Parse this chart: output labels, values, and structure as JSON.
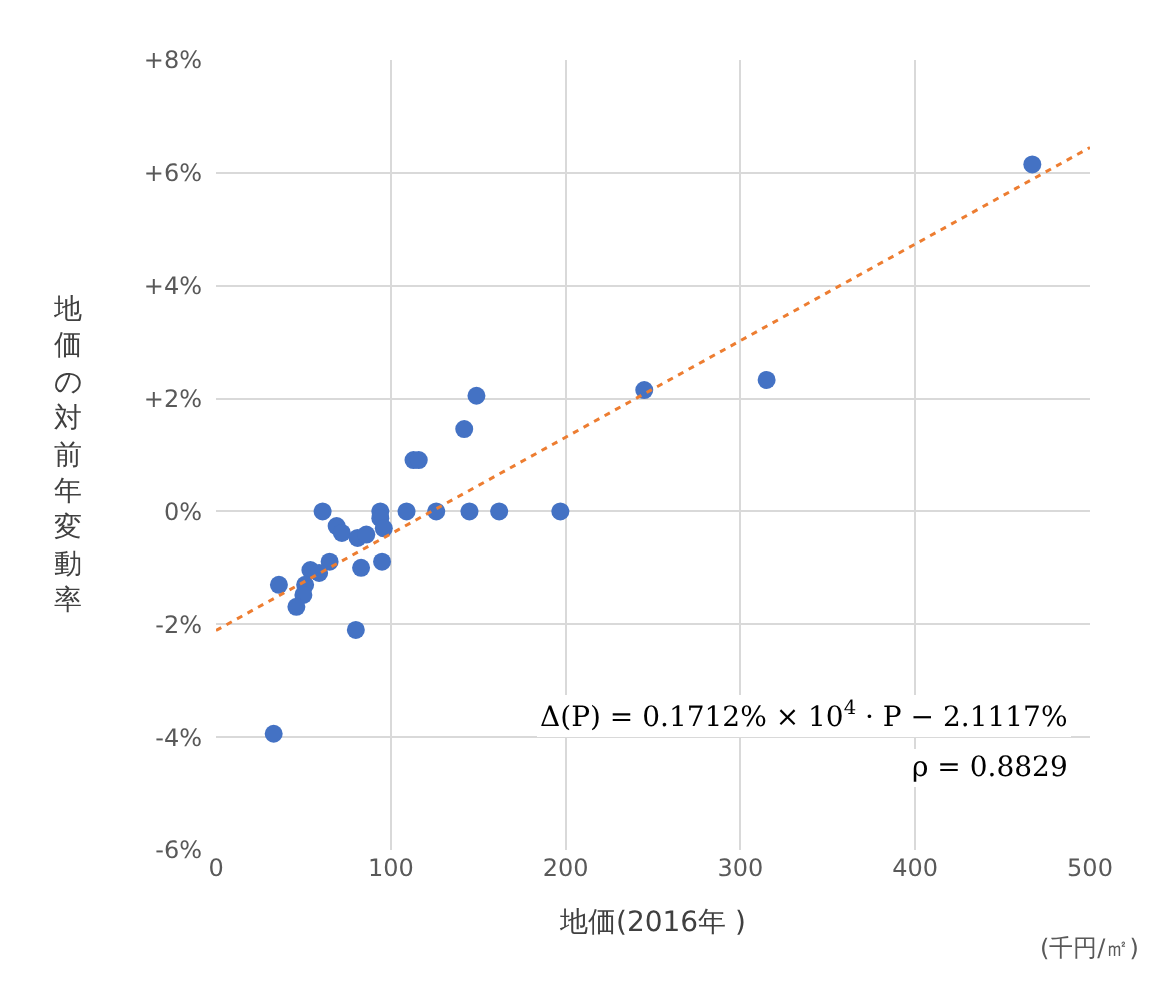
{
  "chart_data": {
    "type": "scatter",
    "xlabel": "地価(2016年 )",
    "ylabel": "地価の対前年変動率",
    "annotations": [
      "(千円/㎡)",
      "Δ(P) = 0.1712% × 10$^{4}$ · P − 2.1117%",
      "ρ = 0.8829"
    ],
    "xlim": [
      0,
      500
    ],
    "xticks": [
      0,
      100,
      200,
      300,
      400,
      500
    ],
    "ylim": [
      -6,
      8
    ],
    "yticks": [
      {
        "value": -6,
        "label": "-6%"
      },
      {
        "value": -4,
        "label": "-4%"
      },
      {
        "value": -2,
        "label": "-2%"
      },
      {
        "value": 0,
        "label": "0%"
      },
      {
        "value": 2,
        "label": "+2%"
      },
      {
        "value": 4,
        "label": "+4%"
      },
      {
        "value": 6,
        "label": "+6%"
      },
      {
        "value": 8,
        "label": "+8%"
      }
    ],
    "grid": true,
    "marker": "circle",
    "series": [
      {
        "color": "#4472c4",
        "x": [
          61,
          69,
          72,
          81,
          86,
          94,
          94,
          96,
          109,
          126,
          145,
          162,
          197,
          113,
          116,
          142,
          149,
          65,
          54,
          59,
          83,
          95,
          36,
          51,
          50,
          46,
          80,
          33,
          245,
          315,
          467
        ],
        "values": [
          0,
          -0.26,
          -0.38,
          -0.47,
          -0.41,
          0,
          -0.12,
          -0.3,
          0,
          0,
          0,
          0,
          0,
          0.91,
          0.91,
          1.46,
          2.05,
          -0.89,
          -1.04,
          -1.09,
          -1.0,
          -0.89,
          -1.3,
          -1.3,
          -1.48,
          -1.69,
          -2.1,
          -3.94,
          2.15,
          2.33,
          6.15
        ]
      },
      {
        "type": "line",
        "color": "#ed7d31",
        "line_style": "dotted",
        "marker": "none",
        "x": [
          0,
          500
        ],
        "values": [
          -2.11,
          6.45
        ]
      }
    ]
  }
}
